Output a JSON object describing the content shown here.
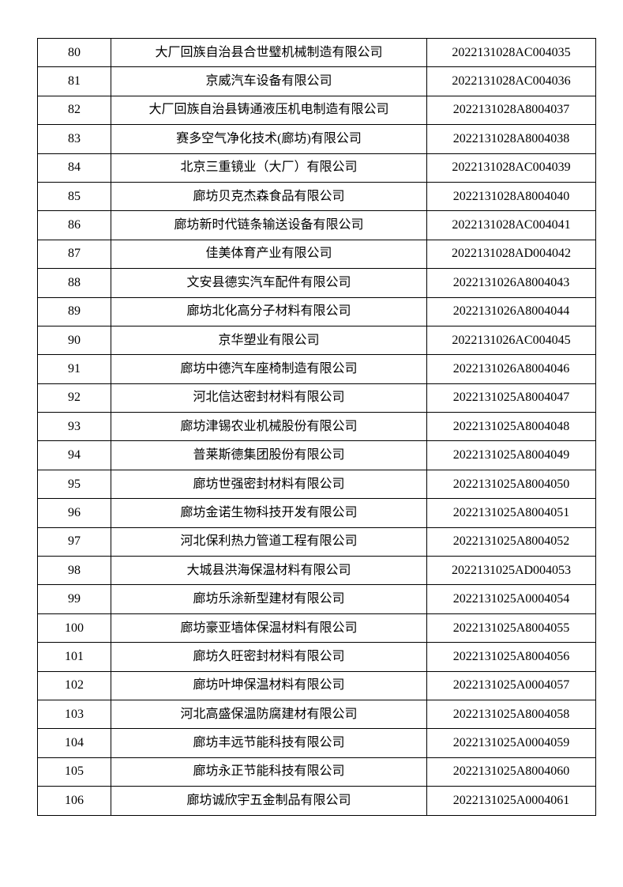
{
  "page": {
    "background_color": "#ffffff",
    "border_color": "#000000",
    "text_color": "#000000"
  },
  "table": {
    "columns": [
      "index",
      "company",
      "code"
    ],
    "rows": [
      {
        "index": "80",
        "company": "大厂回族自治县合世璧机械制造有限公司",
        "code": "2022131028AC004035"
      },
      {
        "index": "81",
        "company": "京威汽车设备有限公司",
        "code": "2022131028AC004036"
      },
      {
        "index": "82",
        "company": "大厂回族自治县铸通液压机电制造有限公司",
        "code": "2022131028A8004037"
      },
      {
        "index": "83",
        "company": "赛多空气净化技术(廊坊)有限公司",
        "code": "2022131028A8004038"
      },
      {
        "index": "84",
        "company": "北京三重镜业（大厂）有限公司",
        "code": "2022131028AC004039"
      },
      {
        "index": "85",
        "company": "廊坊贝克杰森食品有限公司",
        "code": "2022131028A8004040"
      },
      {
        "index": "86",
        "company": "廊坊新时代链条输送设备有限公司",
        "code": "2022131028AC004041"
      },
      {
        "index": "87",
        "company": "佳美体育产业有限公司",
        "code": "2022131028AD004042"
      },
      {
        "index": "88",
        "company": "文安县德实汽车配件有限公司",
        "code": "2022131026A8004043"
      },
      {
        "index": "89",
        "company": "廊坊北化高分子材料有限公司",
        "code": "2022131026A8004044"
      },
      {
        "index": "90",
        "company": "京华塑业有限公司",
        "code": "2022131026AC004045"
      },
      {
        "index": "91",
        "company": "廊坊中德汽车座椅制造有限公司",
        "code": "2022131026A8004046"
      },
      {
        "index": "92",
        "company": "河北信达密封材料有限公司",
        "code": "2022131025A8004047"
      },
      {
        "index": "93",
        "company": "廊坊津锡农业机械股份有限公司",
        "code": "2022131025A8004048"
      },
      {
        "index": "94",
        "company": "普莱斯德集团股份有限公司",
        "code": "2022131025A8004049"
      },
      {
        "index": "95",
        "company": "廊坊世强密封材料有限公司",
        "code": "2022131025A8004050"
      },
      {
        "index": "96",
        "company": "廊坊金诺生物科技开发有限公司",
        "code": "2022131025A8004051"
      },
      {
        "index": "97",
        "company": "河北保利热力管道工程有限公司",
        "code": "2022131025A8004052"
      },
      {
        "index": "98",
        "company": "大城县洪海保温材料有限公司",
        "code": "2022131025AD004053"
      },
      {
        "index": "99",
        "company": "廊坊乐涂新型建材有限公司",
        "code": "2022131025A0004054"
      },
      {
        "index": "100",
        "company": "廊坊豪亚墙体保温材料有限公司",
        "code": "2022131025A8004055"
      },
      {
        "index": "101",
        "company": "廊坊久旺密封材料有限公司",
        "code": "2022131025A8004056"
      },
      {
        "index": "102",
        "company": "廊坊叶坤保温材料有限公司",
        "code": "2022131025A0004057"
      },
      {
        "index": "103",
        "company": "河北高盛保温防腐建材有限公司",
        "code": "2022131025A8004058"
      },
      {
        "index": "104",
        "company": "廊坊丰远节能科技有限公司",
        "code": "2022131025A0004059"
      },
      {
        "index": "105",
        "company": "廊坊永正节能科技有限公司",
        "code": "2022131025A8004060"
      },
      {
        "index": "106",
        "company": "廊坊诚欣宇五金制品有限公司",
        "code": "2022131025A0004061"
      }
    ]
  }
}
